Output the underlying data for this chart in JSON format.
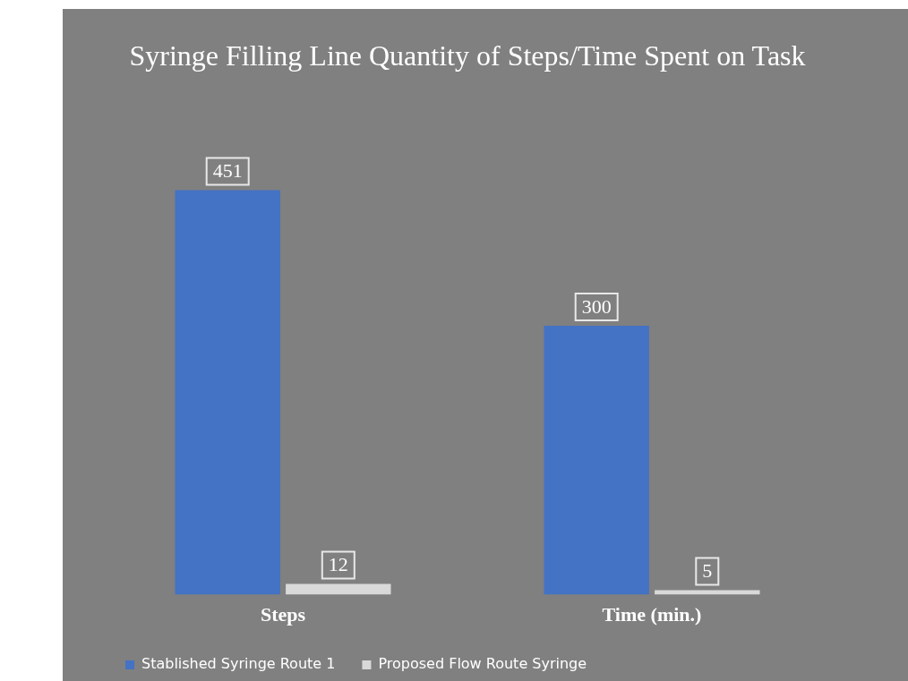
{
  "chart_data": {
    "type": "bar",
    "title": "Syringe Filling Line Quantity of Steps/Time Spent on Task",
    "categories": [
      "Steps",
      "Time (min.)"
    ],
    "series": [
      {
        "name": "Stablished Syringe Route 1",
        "color": "#4472c4",
        "values": [
          451,
          300
        ]
      },
      {
        "name": "Proposed Flow Route Syringe",
        "color": "#d9d9d9",
        "values": [
          12,
          5
        ]
      }
    ],
    "data_labels": true,
    "legend": "bottom left",
    "grid": false
  }
}
